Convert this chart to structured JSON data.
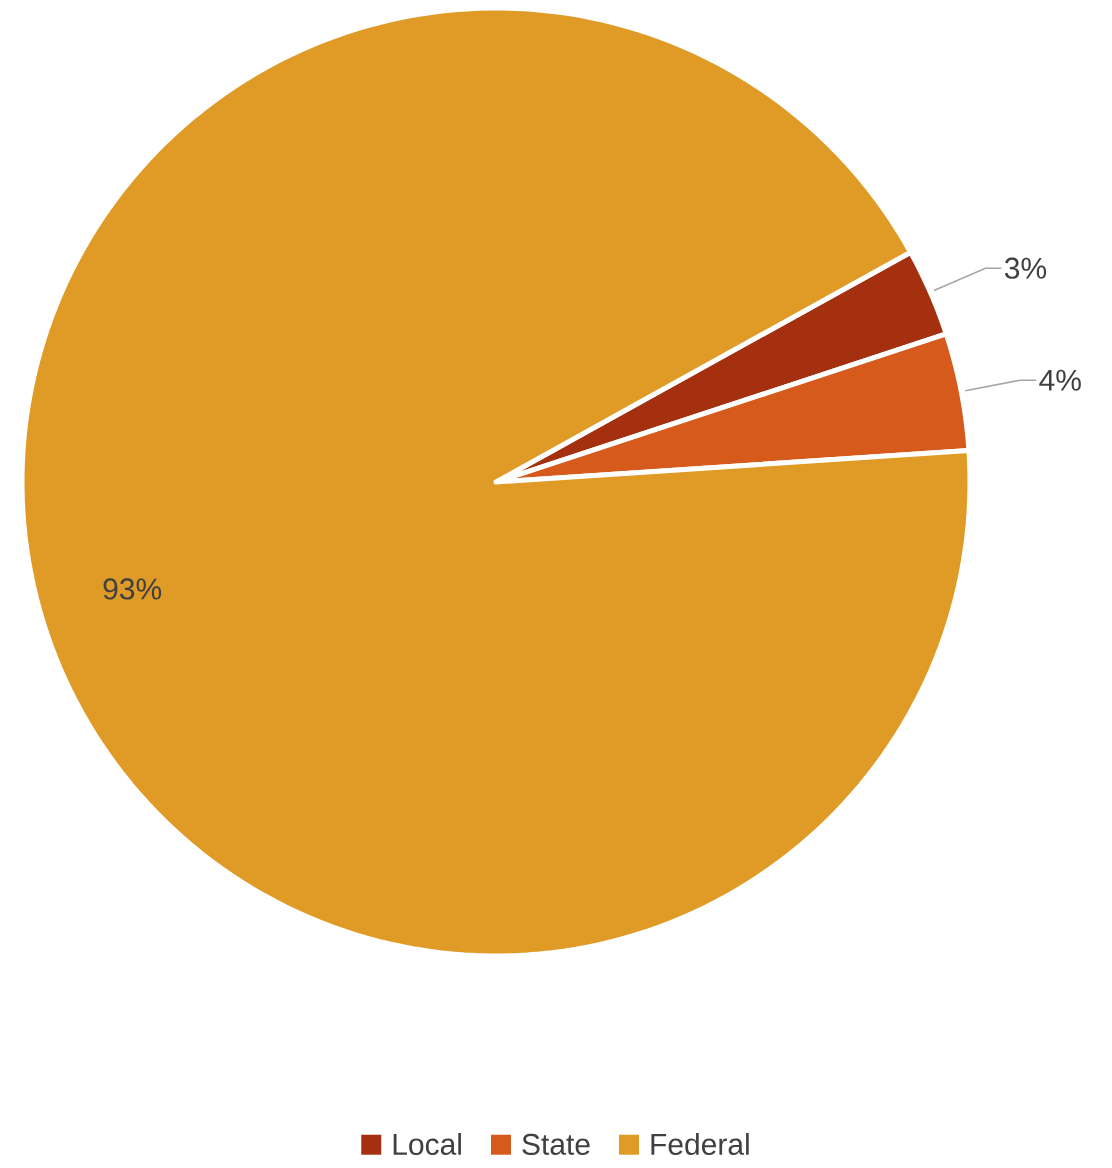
{
  "chart_data": {
    "type": "pie",
    "categories": [
      "Local",
      "State",
      "Federal"
    ],
    "values": [
      3,
      4,
      93
    ],
    "colors": [
      "#a5300f",
      "#d55a1b",
      "#e09a26"
    ],
    "data_labels": true,
    "value_labels": [
      "3%",
      "4%",
      "93%"
    ],
    "legend": "bottom"
  }
}
